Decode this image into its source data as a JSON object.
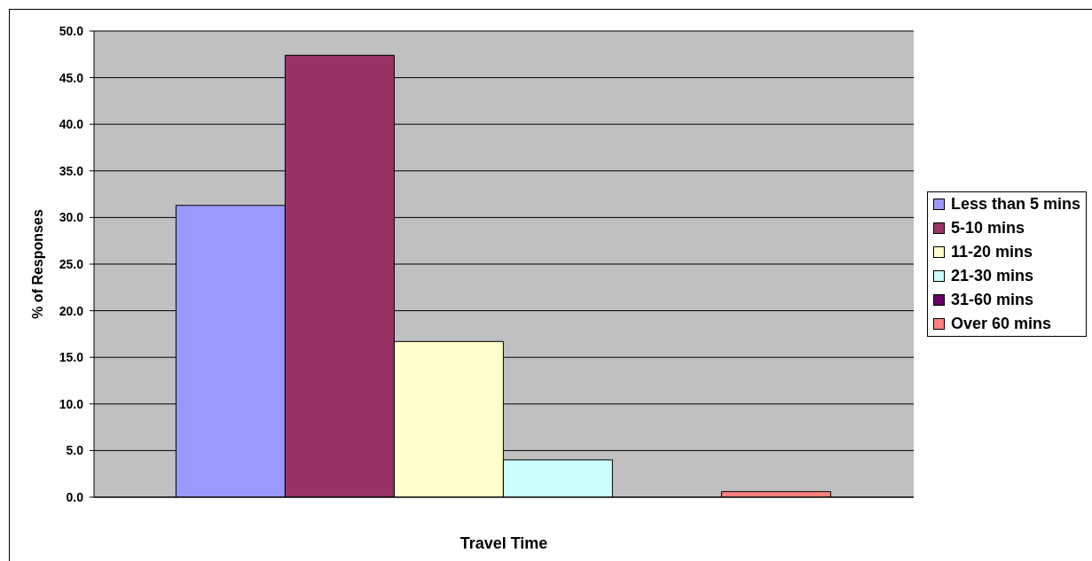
{
  "chart_data": {
    "type": "bar",
    "xlabel": "Travel Time",
    "ylabel": "% of Responses",
    "categories": [
      null
    ],
    "series": [
      {
        "name": "Less than 5 mins",
        "color": "#9999ff",
        "values": [
          31.3
        ]
      },
      {
        "name": "5-10 mins",
        "color": "#993366",
        "values": [
          47.4
        ]
      },
      {
        "name": "11-20 mins",
        "color": "#ffffcc",
        "values": [
          16.7
        ]
      },
      {
        "name": "21-30 mins",
        "color": "#ccffff",
        "values": [
          4.0
        ]
      },
      {
        "name": "31-60 mins",
        "color": "#660066",
        "values": [
          0
        ]
      },
      {
        "name": "Over 60 mins",
        "color": "#ff8080",
        "values": [
          0.6
        ]
      }
    ],
    "ylim": [
      0,
      50
    ],
    "yticks": [
      {
        "value": 0,
        "label": "0.0"
      },
      {
        "value": 5,
        "label": "5.0"
      },
      {
        "value": 10,
        "label": "10.0"
      },
      {
        "value": 15,
        "label": "15.0"
      },
      {
        "value": 20,
        "label": "20.0"
      },
      {
        "value": 25,
        "label": "25.0"
      },
      {
        "value": 30,
        "label": "30.0"
      },
      {
        "value": 35,
        "label": "35.0"
      },
      {
        "value": 40,
        "label": "40.0"
      },
      {
        "value": 45,
        "label": "45.0"
      },
      {
        "value": 50,
        "label": "50.0"
      }
    ],
    "grid": "y",
    "legend": "right"
  }
}
